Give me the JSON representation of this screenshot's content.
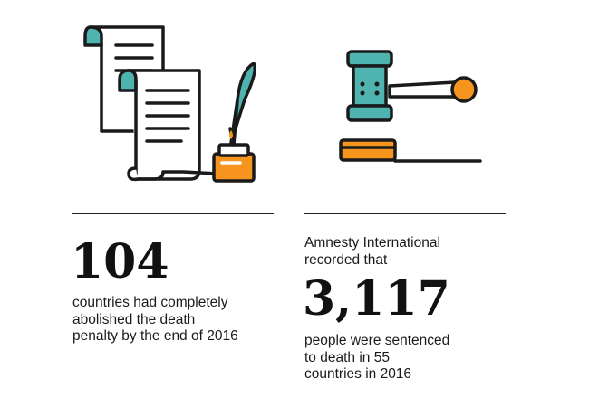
{
  "stats": {
    "left": {
      "number": "104",
      "description_lines": [
        "countries had completely",
        "abolished the death",
        "penalty by the end of 2016"
      ]
    },
    "right": {
      "intro_lines": [
        "Amnesty International",
        "recorded that"
      ],
      "number": "3,117",
      "description_lines": [
        "people were sentenced",
        "to death in 55",
        "countries in 2016"
      ]
    }
  },
  "icons": {
    "left": "scroll-quill-inkwell-icon",
    "right": "gavel-icon"
  },
  "colors": {
    "teal": "#4fb3b0",
    "orange": "#f7941d",
    "outline": "#1a1a1a"
  }
}
